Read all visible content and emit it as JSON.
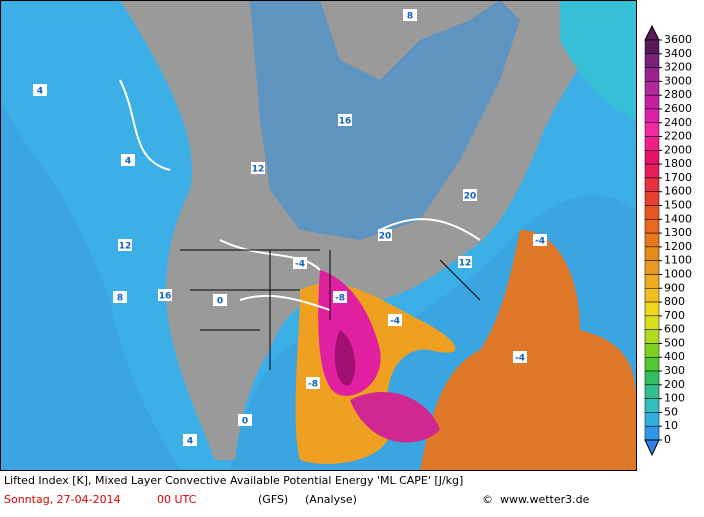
{
  "map": {
    "labels": [
      "4",
      "4",
      "12",
      "16",
      "20",
      "8",
      "0",
      "-4",
      "-8",
      "-4",
      "-8",
      "16",
      "12",
      "4",
      "0",
      "-4",
      "-4",
      "8",
      "12",
      "20"
    ]
  },
  "colorbar": {
    "levels": [
      3600,
      3400,
      3200,
      3000,
      2800,
      2600,
      2400,
      2200,
      2000,
      1800,
      1700,
      1600,
      1500,
      1400,
      1300,
      1200,
      1100,
      1000,
      900,
      800,
      700,
      600,
      500,
      400,
      300,
      200,
      100,
      50,
      10,
      0
    ]
  },
  "footer": {
    "title": "Lifted Index [K], Mixed Layer Convective Available Potential Energy 'ML CAPE' [J/kg]",
    "date": "Sonntag, 27-04-2014",
    "time": "00 UTC",
    "model": "(GFS)",
    "run": "(Analyse)",
    "copyright": "©",
    "source": "www.wetter3.de"
  }
}
